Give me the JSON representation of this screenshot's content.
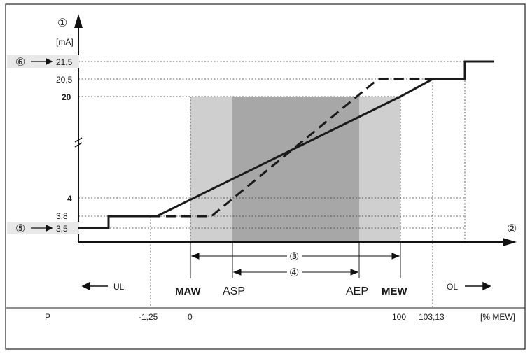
{
  "axis": {
    "y_unit": "[mA]",
    "y_marker": "①",
    "x_marker": "②",
    "x_unit": "[% MEW]",
    "row_label": "P"
  },
  "y_ticks": [
    {
      "label": "21,5",
      "bold": false
    },
    {
      "label": "20,5",
      "bold": false
    },
    {
      "label": "20",
      "bold": true
    },
    {
      "label": "4",
      "bold": true
    },
    {
      "label": "3,8",
      "bold": false
    },
    {
      "label": "3,5",
      "bold": false
    }
  ],
  "callouts": {
    "upper": "⑥",
    "lower": "⑤",
    "range_outer": "③",
    "range_inner": "④"
  },
  "points": {
    "maw": "MAW",
    "asp": "ASP",
    "aep": "AEP",
    "mew": "MEW",
    "ul": "UL",
    "ol": "OL"
  },
  "p_values": [
    "-1,25",
    "0",
    "100",
    "103,13"
  ],
  "colors": {
    "outer_band": "#cfcfcf",
    "inner_band": "#a7a7a7",
    "line": "#1a1a1a",
    "highlight": "#e8e8e8"
  }
}
